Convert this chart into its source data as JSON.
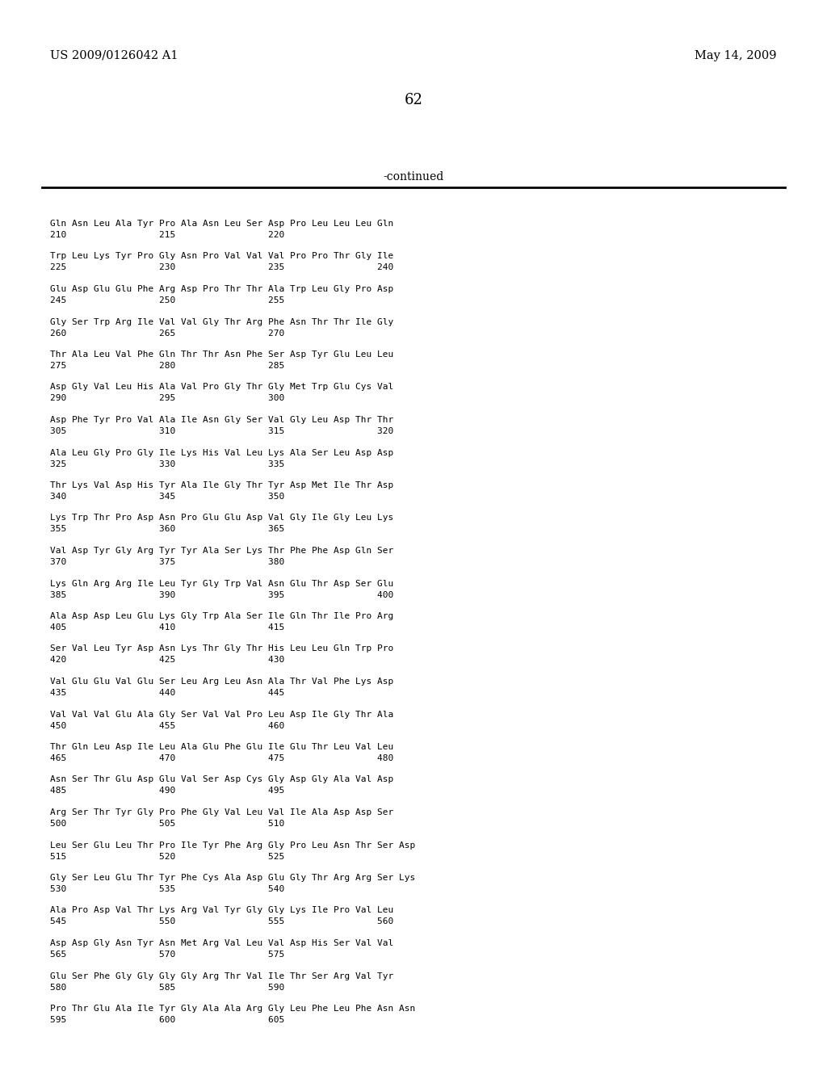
{
  "header_left": "US 2009/0126042 A1",
  "header_right": "May 14, 2009",
  "page_number": "62",
  "continued_label": "-continued",
  "background_color": "#ffffff",
  "text_color": "#000000",
  "lines": [
    [
      "Gln Asn Leu Ala Tyr Pro Ala Asn Leu Ser Asp Pro Leu Leu Leu Gln",
      "210                 215                 220"
    ],
    [
      "Trp Leu Lys Tyr Pro Gly Asn Pro Val Val Val Pro Pro Thr Gly Ile",
      "225                 230                 235                 240"
    ],
    [
      "Glu Asp Glu Glu Phe Arg Asp Pro Thr Thr Ala Trp Leu Gly Pro Asp",
      "245                 250                 255"
    ],
    [
      "Gly Ser Trp Arg Ile Val Val Gly Thr Arg Phe Asn Thr Thr Ile Gly",
      "260                 265                 270"
    ],
    [
      "Thr Ala Leu Val Phe Gln Thr Thr Asn Phe Ser Asp Tyr Glu Leu Leu",
      "275                 280                 285"
    ],
    [
      "Asp Gly Val Leu His Ala Val Pro Gly Thr Gly Met Trp Glu Cys Val",
      "290                 295                 300"
    ],
    [
      "Asp Phe Tyr Pro Val Ala Ile Asn Gly Ser Val Gly Leu Asp Thr Thr",
      "305                 310                 315                 320"
    ],
    [
      "Ala Leu Gly Pro Gly Ile Lys His Val Leu Lys Ala Ser Leu Asp Asp",
      "325                 330                 335"
    ],
    [
      "Thr Lys Val Asp His Tyr Ala Ile Gly Thr Tyr Asp Met Ile Thr Asp",
      "340                 345                 350"
    ],
    [
      "Lys Trp Thr Pro Asp Asn Pro Glu Glu Asp Val Gly Ile Gly Leu Lys",
      "355                 360                 365"
    ],
    [
      "Val Asp Tyr Gly Arg Tyr Tyr Ala Ser Lys Thr Phe Phe Asp Gln Ser",
      "370                 375                 380"
    ],
    [
      "Lys Gln Arg Arg Ile Leu Tyr Gly Trp Val Asn Glu Thr Asp Ser Glu",
      "385                 390                 395                 400"
    ],
    [
      "Ala Asp Asp Leu Glu Lys Gly Trp Ala Ser Ile Gln Thr Ile Pro Arg",
      "405                 410                 415"
    ],
    [
      "Ser Val Leu Tyr Asp Asn Lys Thr Gly Thr His Leu Leu Gln Trp Pro",
      "420                 425                 430"
    ],
    [
      "Val Glu Glu Val Glu Ser Leu Arg Leu Asn Ala Thr Val Phe Lys Asp",
      "435                 440                 445"
    ],
    [
      "Val Val Val Glu Ala Gly Ser Val Val Pro Leu Asp Ile Gly Thr Ala",
      "450                 455                 460"
    ],
    [
      "Thr Gln Leu Asp Ile Leu Ala Glu Phe Glu Ile Glu Thr Leu Val Leu",
      "465                 470                 475                 480"
    ],
    [
      "Asn Ser Thr Glu Asp Glu Val Ser Asp Cys Gly Asp Gly Ala Val Asp",
      "485                 490                 495"
    ],
    [
      "Arg Ser Thr Tyr Gly Pro Phe Gly Val Leu Val Ile Ala Asp Asp Ser",
      "500                 505                 510"
    ],
    [
      "Leu Ser Glu Leu Thr Pro Ile Tyr Phe Arg Gly Pro Leu Asn Thr Ser Asp",
      "515                 520                 525"
    ],
    [
      "Gly Ser Leu Glu Thr Tyr Phe Cys Ala Asp Glu Gly Thr Arg Arg Ser Lys",
      "530                 535                 540"
    ],
    [
      "Ala Pro Asp Val Thr Lys Arg Val Tyr Gly Gly Lys Ile Pro Val Leu",
      "545                 550                 555                 560"
    ],
    [
      "Asp Asp Gly Asn Tyr Asn Met Arg Val Leu Val Asp His Ser Val Val",
      "565                 570                 575"
    ],
    [
      "Glu Ser Phe Gly Gly Gly Gly Arg Thr Val Ile Thr Ser Arg Val Tyr",
      "580                 585                 590"
    ],
    [
      "Pro Thr Glu Ala Ile Tyr Gly Ala Ala Arg Gly Leu Phe Leu Phe Asn Asn",
      "595                 600                 605"
    ]
  ]
}
